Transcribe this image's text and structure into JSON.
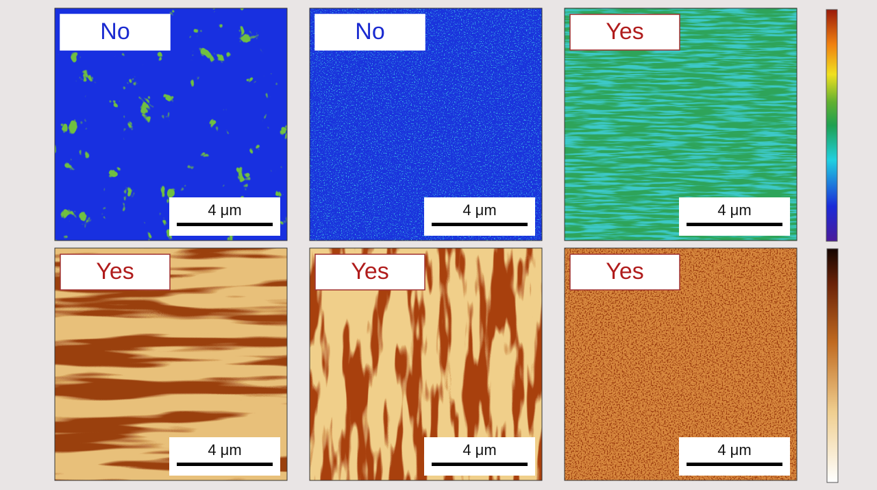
{
  "panels": [
    {
      "label": "No",
      "scale_bar": "4 μm"
    },
    {
      "label": "No",
      "scale_bar": "4 μm"
    },
    {
      "label": "Yes",
      "scale_bar": "4 μm"
    },
    {
      "label": "Yes",
      "scale_bar": "4 μm"
    },
    {
      "label": "Yes",
      "scale_bar": "4 μm"
    },
    {
      "label": "Yes",
      "scale_bar": "4 μm"
    }
  ]
}
